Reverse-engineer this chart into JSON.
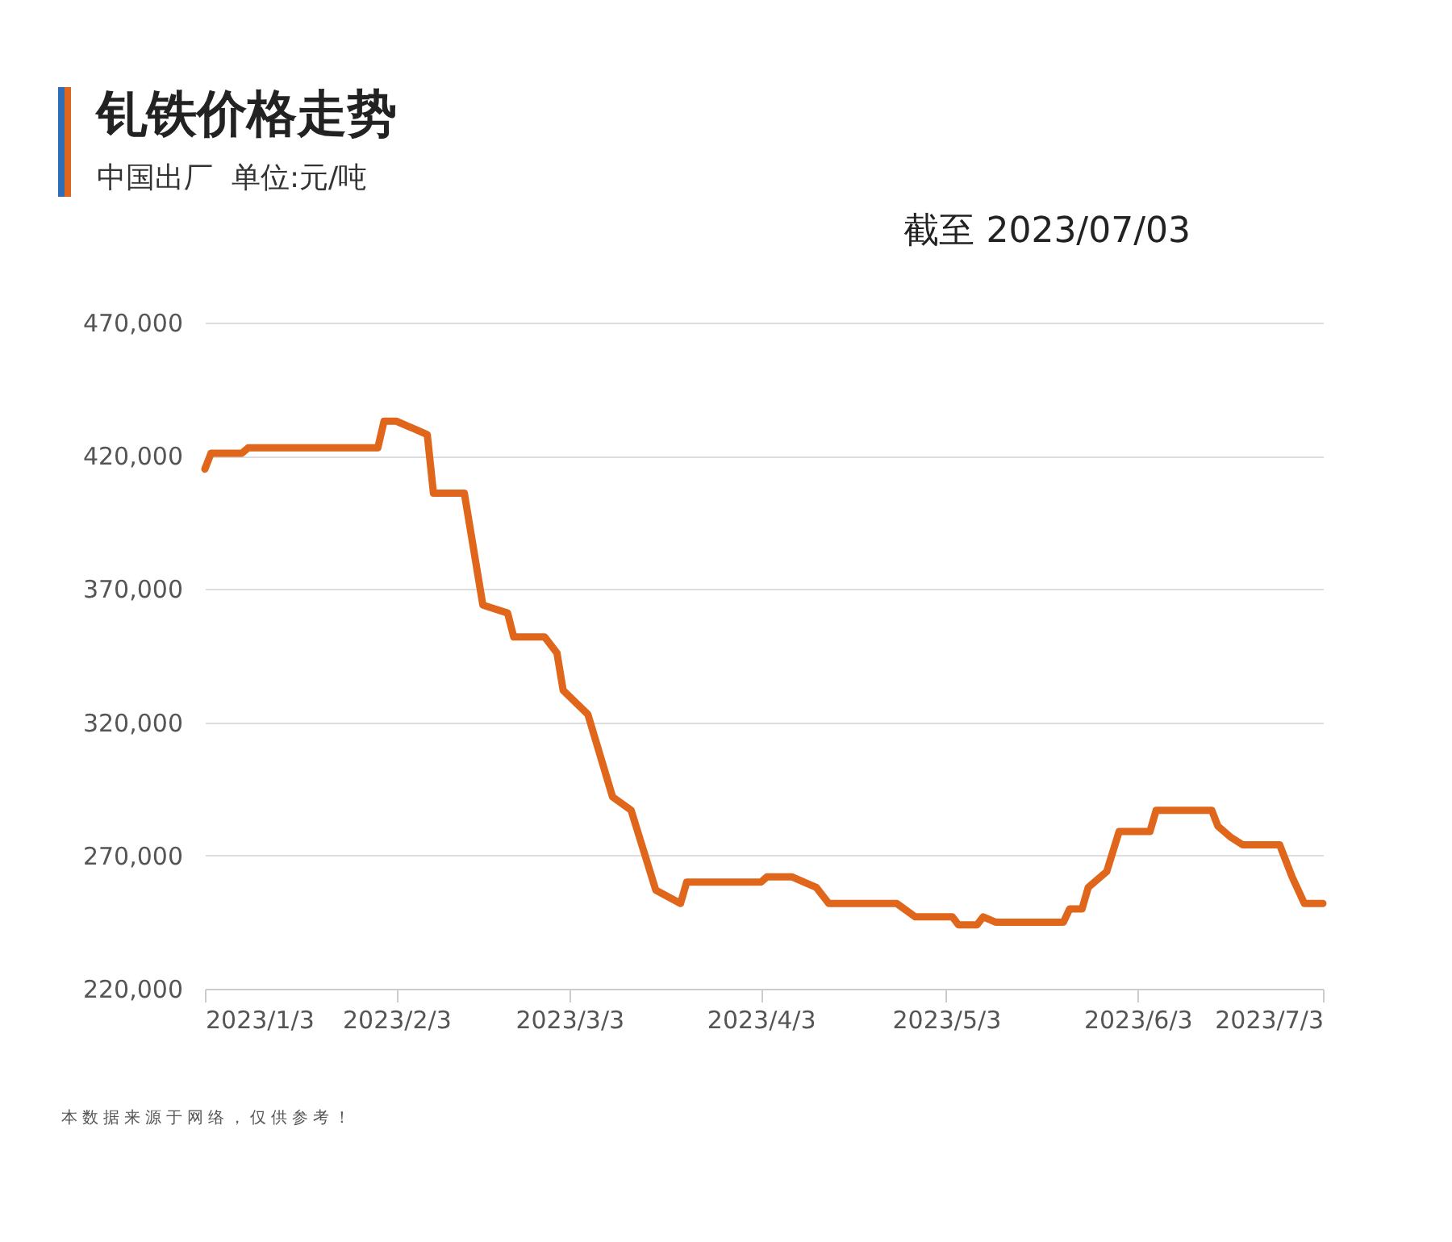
{
  "chart_data": {
    "type": "line",
    "title": "钆铁价格走势",
    "subtitle": "中国出厂  单位:元/吨",
    "annotations": [
      "截至 2023/07/03",
      "本数据来源于网络，仅供参考！"
    ],
    "x": [
      "2023-01-03",
      "2023-01-04",
      "2023-01-09",
      "2023-01-10",
      "2023-01-31",
      "2023-02-01",
      "2023-02-03",
      "2023-02-06",
      "2023-02-08",
      "2023-02-09",
      "2023-02-14",
      "2023-02-17",
      "2023-02-21",
      "2023-02-22",
      "2023-02-27",
      "2023-03-01",
      "2023-03-02",
      "2023-03-06",
      "2023-03-10",
      "2023-03-13",
      "2023-03-17",
      "2023-03-21",
      "2023-03-22",
      "2023-04-03",
      "2023-04-04",
      "2023-04-08",
      "2023-04-11",
      "2023-04-12",
      "2023-04-14",
      "2023-04-25",
      "2023-04-28",
      "2023-05-04",
      "2023-05-05",
      "2023-05-08",
      "2023-05-09",
      "2023-05-11",
      "2023-05-22",
      "2023-05-23",
      "2023-05-25",
      "2023-05-26",
      "2023-05-29",
      "2023-05-31",
      "2023-06-05",
      "2023-06-06",
      "2023-06-15",
      "2023-06-16",
      "2023-06-18",
      "2023-06-20",
      "2023-06-26",
      "2023-06-28",
      "2023-06-30",
      "2023-07-03"
    ],
    "series": [
      {
        "color": "#e0661c",
        "values": [
          415000,
          421000,
          421000,
          423000,
          423000,
          433000,
          433000,
          430000,
          428000,
          406000,
          406000,
          364000,
          361000,
          352000,
          352000,
          346000,
          332000,
          323000,
          292000,
          287000,
          257000,
          252000,
          260000,
          260000,
          262000,
          262000,
          259000,
          258000,
          252000,
          252000,
          247000,
          247000,
          244000,
          244000,
          247000,
          245000,
          245000,
          250000,
          250000,
          258000,
          264000,
          279000,
          279000,
          287000,
          287000,
          281000,
          277000,
          274000,
          274000,
          262000,
          252000,
          252000
        ]
      }
    ],
    "xlim": [
      "2023-01-03",
      "2023-07-03"
    ],
    "xticks": [
      {
        "value": "2023-01-03",
        "label": "2023/1/3"
      },
      {
        "value": "2023-02-03",
        "label": "2023/2/3"
      },
      {
        "value": "2023-03-03",
        "label": "2023/3/3"
      },
      {
        "value": "2023-04-03",
        "label": "2023/4/3"
      },
      {
        "value": "2023-05-03",
        "label": "2023/5/3"
      },
      {
        "value": "2023-06-03",
        "label": "2023/6/3"
      },
      {
        "value": "2023-07-03",
        "label": "2023/7/3"
      }
    ],
    "ylim": [
      220000,
      470000
    ],
    "yticks": [
      {
        "value": 220000,
        "label": "220,000"
      },
      {
        "value": 270000,
        "label": "270,000"
      },
      {
        "value": 320000,
        "label": "320,000"
      },
      {
        "value": 370000,
        "label": "370,000"
      },
      {
        "value": 420000,
        "label": "420,000"
      },
      {
        "value": 470000,
        "label": "470,000"
      }
    ],
    "grid": "y",
    "line_style": "solid"
  }
}
